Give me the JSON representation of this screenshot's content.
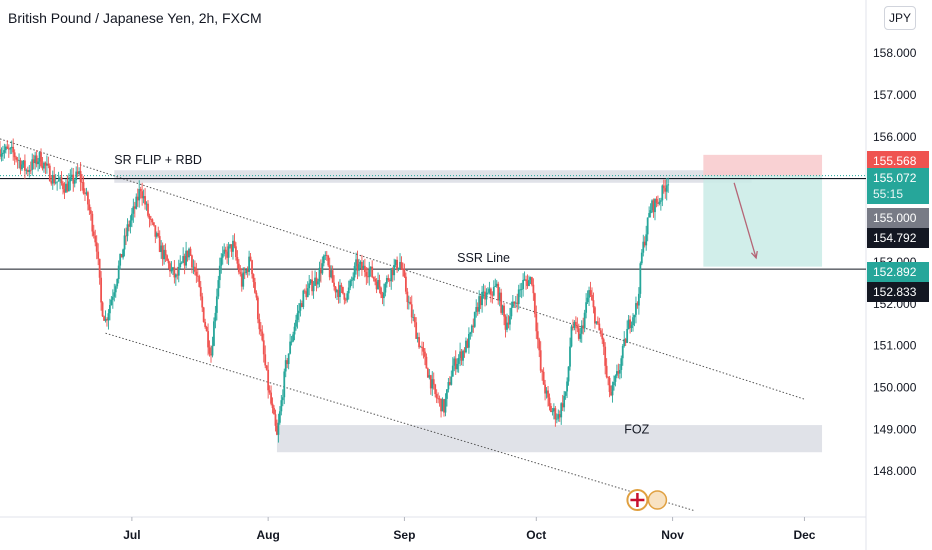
{
  "header": {
    "title": "British Pound / Japanese Yen, 2h, FXCM",
    "currency_button": "JPY"
  },
  "colors": {
    "up": "#26a69a",
    "down": "#ef5350",
    "stop_zone": "#f8c9cb",
    "target_zone": "#c9ebe6",
    "zone_gray": "#dadde4",
    "axis_text": "#131722",
    "price_tag_dark": "#131722",
    "price_tag_gray": "#787b86"
  },
  "chart_data": {
    "type": "candlestick",
    "y_ticks": [
      "148.000",
      "149.000",
      "150.000",
      "151.000",
      "152.000",
      "153.000",
      "154.000",
      "155.000",
      "156.000",
      "157.000",
      "158.000"
    ],
    "x_ticks": [
      {
        "label": "Jul",
        "date": "2024-07-01"
      },
      {
        "label": "Aug",
        "date": "2024-08-01"
      },
      {
        "label": "Sep",
        "date": "2024-09-01"
      },
      {
        "label": "Oct",
        "date": "2024-10-01"
      },
      {
        "label": "Nov",
        "date": "2024-11-01"
      },
      {
        "label": "Dec",
        "date": "2024-12-01"
      }
    ],
    "price_path": [
      [
        "2024-06-01",
        155.7
      ],
      [
        "2024-06-04",
        155.6
      ],
      [
        "2024-06-07",
        155.2
      ],
      [
        "2024-06-10",
        155.5
      ],
      [
        "2024-06-13",
        155.0
      ],
      [
        "2024-06-16",
        154.8
      ],
      [
        "2024-06-19",
        155.1
      ],
      [
        "2024-06-21",
        154.4
      ],
      [
        "2024-06-23",
        153.4
      ],
      [
        "2024-06-24",
        152.0
      ],
      [
        "2024-06-25",
        151.6
      ],
      [
        "2024-06-27",
        152.4
      ],
      [
        "2024-06-30",
        153.8
      ],
      [
        "2024-07-02",
        154.4
      ],
      [
        "2024-07-03",
        154.8
      ],
      [
        "2024-07-05",
        154.0
      ],
      [
        "2024-07-08",
        153.2
      ],
      [
        "2024-07-11",
        152.6
      ],
      [
        "2024-07-14",
        153.3
      ],
      [
        "2024-07-16",
        152.5
      ],
      [
        "2024-07-18",
        151.3
      ],
      [
        "2024-07-19",
        150.8
      ],
      [
        "2024-07-21",
        153.0
      ],
      [
        "2024-07-24",
        153.4
      ],
      [
        "2024-07-26",
        152.5
      ],
      [
        "2024-07-28",
        153.1
      ],
      [
        "2024-07-30",
        151.5
      ],
      [
        "2024-08-01",
        150.0
      ],
      [
        "2024-08-02",
        149.4
      ],
      [
        "2024-08-03",
        148.8
      ],
      [
        "2024-08-05",
        150.5
      ],
      [
        "2024-08-07",
        151.5
      ],
      [
        "2024-08-09",
        152.2
      ],
      [
        "2024-08-12",
        152.6
      ],
      [
        "2024-08-14",
        153.1
      ],
      [
        "2024-08-16",
        152.4
      ],
      [
        "2024-08-19",
        152.2
      ],
      [
        "2024-08-21",
        152.9
      ],
      [
        "2024-08-24",
        152.8
      ],
      [
        "2024-08-27",
        152.3
      ],
      [
        "2024-08-29",
        152.8
      ],
      [
        "2024-08-31",
        153.0
      ],
      [
        "2024-09-02",
        152.0
      ],
      [
        "2024-09-04",
        151.2
      ],
      [
        "2024-09-06",
        150.5
      ],
      [
        "2024-09-08",
        149.8
      ],
      [
        "2024-09-10",
        149.5
      ],
      [
        "2024-09-12",
        150.5
      ],
      [
        "2024-09-14",
        150.8
      ],
      [
        "2024-09-16",
        151.2
      ],
      [
        "2024-09-18",
        152.1
      ],
      [
        "2024-09-20",
        152.2
      ],
      [
        "2024-09-22",
        152.4
      ],
      [
        "2024-09-24",
        151.5
      ],
      [
        "2024-09-26",
        152.0
      ],
      [
        "2024-09-28",
        152.5
      ],
      [
        "2024-09-30",
        152.6
      ],
      [
        "2024-10-01",
        151.5
      ],
      [
        "2024-10-02",
        150.4
      ],
      [
        "2024-10-04",
        149.5
      ],
      [
        "2024-10-06",
        149.3
      ],
      [
        "2024-10-08",
        150.0
      ],
      [
        "2024-10-09",
        151.5
      ],
      [
        "2024-10-11",
        151.2
      ],
      [
        "2024-10-13",
        152.3
      ],
      [
        "2024-10-15",
        151.4
      ],
      [
        "2024-10-16",
        151.2
      ],
      [
        "2024-10-17",
        150.2
      ],
      [
        "2024-10-18",
        149.8
      ],
      [
        "2024-10-20",
        150.5
      ],
      [
        "2024-10-22",
        151.5
      ],
      [
        "2024-10-24",
        152.0
      ],
      [
        "2024-10-25",
        153.2
      ],
      [
        "2024-10-27",
        154.3
      ],
      [
        "2024-10-29",
        154.5
      ],
      [
        "2024-10-31",
        155.0
      ]
    ],
    "date_range": [
      "2024-06-01",
      "2024-12-15"
    ],
    "zones": [
      {
        "name": "SR FLIP + RBD",
        "from": "2024-06-27",
        "to": "2024-11-19",
        "top": 155.2,
        "bottom": 154.9
      },
      {
        "name": "FOZ",
        "from": "2024-08-03",
        "to": "2024-12-05",
        "top": 149.1,
        "bottom": 148.45
      }
    ],
    "horizontal_lines": [
      155.0,
      152.833
    ],
    "channel_lines": [
      {
        "from": [
          "2024-06-01",
          155.95
        ],
        "to": [
          "2024-12-01",
          149.72
        ]
      },
      {
        "from": [
          "2024-06-25",
          151.3
        ],
        "to": [
          "2024-11-06",
          147.05
        ]
      }
    ],
    "position": {
      "type": "short",
      "from": "2024-11-08",
      "to": "2024-12-05",
      "stop": 155.568,
      "entry": 155.072,
      "target": 152.892,
      "arrow": {
        "from": [
          "2024-11-15",
          154.9
        ],
        "to": [
          "2024-11-20",
          153.1
        ]
      }
    },
    "annotations": [
      {
        "text": "SR FLIP + RBD",
        "date": "2024-06-27",
        "price": 155.35
      },
      {
        "text": "SSR Line",
        "date": "2024-09-13",
        "price": 153.0
      },
      {
        "text": "FOZ",
        "date": "2024-10-21",
        "price": 148.9
      }
    ],
    "price_labels": [
      {
        "value": "155.568",
        "role": "stop"
      },
      {
        "value": "155.072",
        "role": "last",
        "countdown": "55:15"
      },
      {
        "value": "155.000",
        "role": "line"
      },
      {
        "value": "154.792",
        "role": "marker"
      },
      {
        "value": "152.892",
        "role": "target"
      },
      {
        "value": "152.833",
        "role": "line"
      }
    ],
    "grid": false,
    "ylim": [
      146.9,
      158.7
    ]
  }
}
